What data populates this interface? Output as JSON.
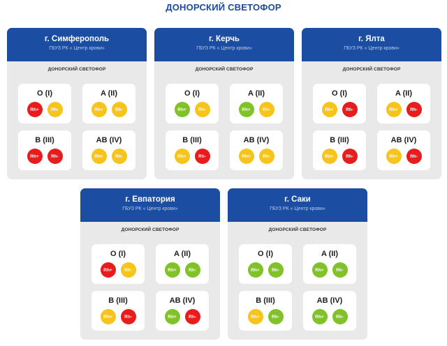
{
  "page_title": "ДОНОРСКИЙ СВЕТОФОР",
  "colors": {
    "red": "#e81c1c",
    "yellow": "#f6c41c",
    "green": "#80c228",
    "header": "#1b4ea3"
  },
  "cards": [
    {
      "city": "г. Симферополь",
      "org": "ГБУЗ РК « Центр крови»",
      "subtitle": "ДОНОРСКИЙ СВЕТОФОР",
      "groups": [
        {
          "label": "O (I)",
          "rh_pos": {
            "text": "Rh+",
            "status": "red"
          },
          "rh_neg": {
            "text": "Rh-",
            "status": "yellow"
          }
        },
        {
          "label": "A (II)",
          "rh_pos": {
            "text": "Rh+",
            "status": "yellow"
          },
          "rh_neg": {
            "text": "Rh-",
            "status": "yellow"
          }
        },
        {
          "label": "B (III)",
          "rh_pos": {
            "text": "Rh+",
            "status": "red"
          },
          "rh_neg": {
            "text": "Rh-",
            "status": "red"
          }
        },
        {
          "label": "AB (IV)",
          "rh_pos": {
            "text": "Rh+",
            "status": "yellow"
          },
          "rh_neg": {
            "text": "Rh-",
            "status": "yellow"
          }
        }
      ]
    },
    {
      "city": "г. Керчь",
      "org": "ГБУЗ РК « Центр крови»",
      "subtitle": "ДОНОРСКИЙ СВЕТОФОР",
      "groups": [
        {
          "label": "O (I)",
          "rh_pos": {
            "text": "Rh+",
            "status": "green"
          },
          "rh_neg": {
            "text": "Rh-",
            "status": "yellow"
          }
        },
        {
          "label": "A (II)",
          "rh_pos": {
            "text": "Rh+",
            "status": "green"
          },
          "rh_neg": {
            "text": "Rh-",
            "status": "yellow"
          }
        },
        {
          "label": "B (III)",
          "rh_pos": {
            "text": "Rh+",
            "status": "yellow"
          },
          "rh_neg": {
            "text": "Rh-",
            "status": "red"
          }
        },
        {
          "label": "AB (IV)",
          "rh_pos": {
            "text": "Rh+",
            "status": "yellow"
          },
          "rh_neg": {
            "text": "Rh-",
            "status": "yellow"
          }
        }
      ]
    },
    {
      "city": "г. Ялта",
      "org": "ГБУЗ РК « Центр крови»",
      "subtitle": "ДОНОРСКИЙ СВЕТОФОР",
      "groups": [
        {
          "label": "O (I)",
          "rh_pos": {
            "text": "Rh+",
            "status": "yellow"
          },
          "rh_neg": {
            "text": "Rh-",
            "status": "red"
          }
        },
        {
          "label": "A (II)",
          "rh_pos": {
            "text": "Rh+",
            "status": "yellow"
          },
          "rh_neg": {
            "text": "Rh-",
            "status": "red"
          }
        },
        {
          "label": "B (III)",
          "rh_pos": {
            "text": "Rh+",
            "status": "yellow"
          },
          "rh_neg": {
            "text": "Rh-",
            "status": "red"
          }
        },
        {
          "label": "AB (IV)",
          "rh_pos": {
            "text": "Rh+",
            "status": "yellow"
          },
          "rh_neg": {
            "text": "Rh-",
            "status": "red"
          }
        }
      ]
    },
    {
      "city": "г. Евпатория",
      "org": "ГБУЗ РК « Центр крови»",
      "subtitle": "ДОНОРСКИЙ СВЕТОФОР",
      "groups": [
        {
          "label": "O (I)",
          "rh_pos": {
            "text": "Rh+",
            "status": "red"
          },
          "rh_neg": {
            "text": "Rh-",
            "status": "yellow"
          }
        },
        {
          "label": "A (II)",
          "rh_pos": {
            "text": "Rh+",
            "status": "green"
          },
          "rh_neg": {
            "text": "Rh-",
            "status": "green"
          }
        },
        {
          "label": "B (III)",
          "rh_pos": {
            "text": "Rh+",
            "status": "yellow"
          },
          "rh_neg": {
            "text": "Rh-",
            "status": "red"
          }
        },
        {
          "label": "AB (IV)",
          "rh_pos": {
            "text": "Rh+",
            "status": "green"
          },
          "rh_neg": {
            "text": "Rh-",
            "status": "red"
          }
        }
      ]
    },
    {
      "city": "г. Саки",
      "org": "ГБУЗ РК « Центр крови»",
      "subtitle": "ДОНОРСКИЙ СВЕТОФОР",
      "groups": [
        {
          "label": "O (I)",
          "rh_pos": {
            "text": "Rh+",
            "status": "green"
          },
          "rh_neg": {
            "text": "Rh-",
            "status": "green"
          }
        },
        {
          "label": "A (II)",
          "rh_pos": {
            "text": "Rh+",
            "status": "green"
          },
          "rh_neg": {
            "text": "Rh-",
            "status": "green"
          }
        },
        {
          "label": "B (III)",
          "rh_pos": {
            "text": "Rh+",
            "status": "yellow"
          },
          "rh_neg": {
            "text": "Rh-",
            "status": "green"
          }
        },
        {
          "label": "AB (IV)",
          "rh_pos": {
            "text": "Rh+",
            "status": "green"
          },
          "rh_neg": {
            "text": "Rh-",
            "status": "green"
          }
        }
      ]
    }
  ]
}
